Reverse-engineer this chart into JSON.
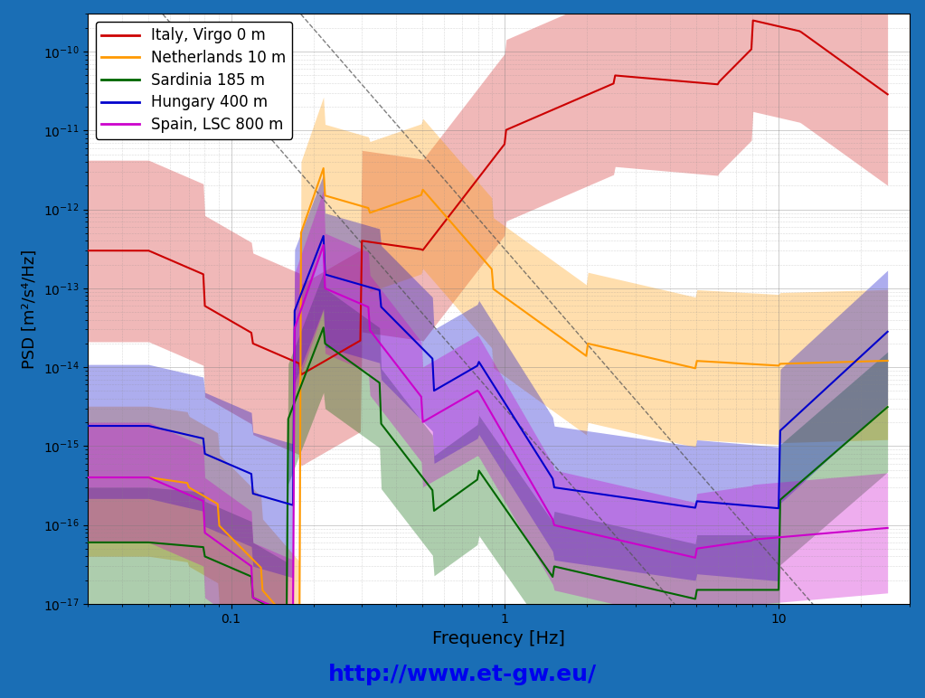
{
  "title": "",
  "xlabel": "Frequency [Hz]",
  "ylabel": "PSD [m²/s⁴/Hz]",
  "xlim": [
    0.03,
    30
  ],
  "ylim": [
    1e-17,
    3e-10
  ],
  "plot_bg_color": "#ffffff",
  "frame_color": "#1a6eb5",
  "url_text": "http://www.et-gw.eu/",
  "url_color": "#0000ee",
  "series": {
    "italy": {
      "label": "Italy, Virgo 0 m",
      "color": "#cc0000",
      "fill_alpha": 0.3
    },
    "netherlands": {
      "label": "Netherlands 10 m",
      "color": "#ff9900",
      "fill_alpha": 0.35
    },
    "sardinia": {
      "label": "Sardinia 185 m",
      "color": "#006600",
      "fill_alpha": 0.35
    },
    "hungary": {
      "label": "Hungary 400 m",
      "color": "#0000cc",
      "fill_alpha": 0.35
    },
    "spain": {
      "label": "Spain, LSC 800 m",
      "color": "#cc00cc",
      "fill_alpha": 0.35
    }
  }
}
